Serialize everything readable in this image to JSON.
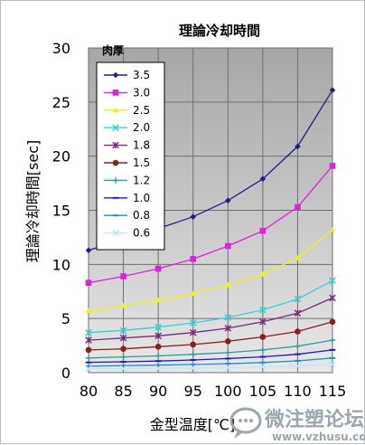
{
  "chart_data": {
    "type": "line",
    "title": "理論冷却時間",
    "xlabel": "金型温度[℃]",
    "ylabel": "理論冷却時間[sec]",
    "legend_title": "肉厚",
    "legend_position": "top-left",
    "grid": true,
    "x": [
      80,
      85,
      90,
      95,
      100,
      105,
      110,
      115
    ],
    "xlim": [
      80,
      115
    ],
    "ylim": [
      0,
      30
    ],
    "yticks": [
      0,
      5,
      10,
      15,
      20,
      25,
      30
    ],
    "series": [
      {
        "name": "3.5",
        "color": "#1f1f8c",
        "marker": "diamond",
        "values": [
          11.3,
          12.3,
          13.3,
          14.4,
          15.9,
          17.9,
          20.9,
          26.1
        ]
      },
      {
        "name": "3.0",
        "color": "#e020e0",
        "marker": "square",
        "values": [
          8.3,
          8.9,
          9.6,
          10.5,
          11.7,
          13.1,
          15.3,
          19.1
        ]
      },
      {
        "name": "2.5",
        "color": "#f2f20f",
        "marker": "triangle",
        "values": [
          5.7,
          6.2,
          6.7,
          7.3,
          8.1,
          9.1,
          10.6,
          13.2
        ]
      },
      {
        "name": "2.0",
        "color": "#33d3d3",
        "marker": "x",
        "values": [
          3.7,
          3.9,
          4.2,
          4.6,
          5.1,
          5.8,
          6.8,
          8.5
        ]
      },
      {
        "name": "1.8",
        "color": "#7a2a7a",
        "marker": "star",
        "values": [
          3.0,
          3.2,
          3.4,
          3.7,
          4.1,
          4.7,
          5.5,
          6.9
        ]
      },
      {
        "name": "1.5",
        "color": "#8b1e1e",
        "marker": "circle",
        "values": [
          2.1,
          2.2,
          2.4,
          2.6,
          2.9,
          3.3,
          3.8,
          4.7
        ]
      },
      {
        "name": "1.2",
        "color": "#2a9d8f",
        "marker": "plus",
        "values": [
          1.35,
          1.45,
          1.55,
          1.7,
          1.85,
          2.1,
          2.45,
          3.0
        ]
      },
      {
        "name": "1.0",
        "color": "#1a1ad0",
        "marker": "dash",
        "values": [
          0.95,
          1.0,
          1.07,
          1.17,
          1.3,
          1.46,
          1.7,
          2.1
        ]
      },
      {
        "name": "0.8",
        "color": "#1e90c8",
        "marker": "dash",
        "values": [
          0.6,
          0.64,
          0.69,
          0.75,
          0.83,
          0.94,
          1.09,
          1.35
        ]
      },
      {
        "name": "0.6",
        "color": "#bfe8f8",
        "marker": "x",
        "values": [
          0.34,
          0.36,
          0.39,
          0.42,
          0.47,
          0.53,
          0.61,
          0.76
        ]
      }
    ]
  },
  "watermark": {
    "text": "微注塑论坛",
    "url": "www.vzhusu.com",
    "icon": "chat-bubble-logo",
    "color": "#9aa6ad"
  }
}
